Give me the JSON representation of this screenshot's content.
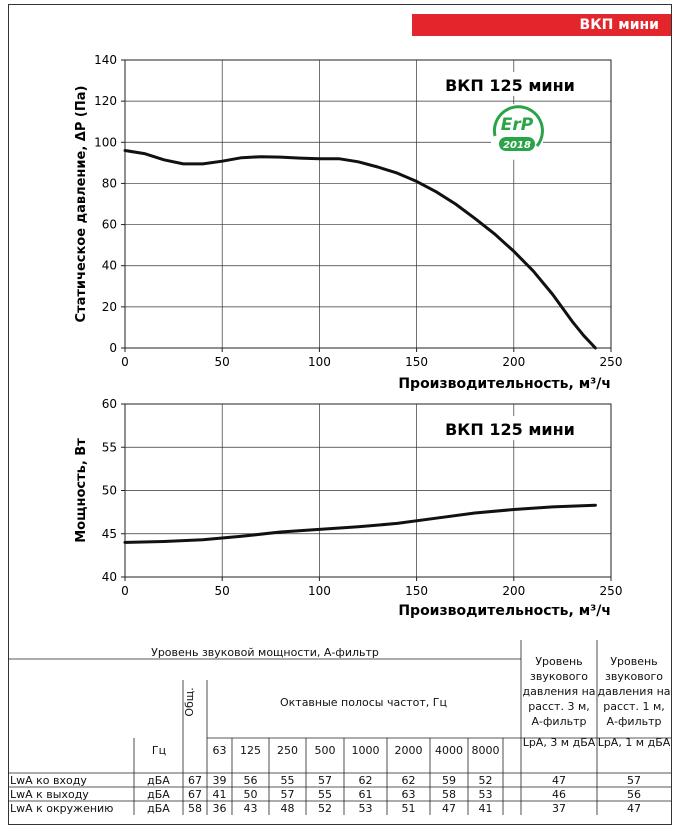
{
  "header": {
    "badge": "ВКП мини"
  },
  "colors": {
    "badge": "#e3262c",
    "curve": "#111111",
    "erp_green": "#2aa449"
  },
  "chart_data": [
    {
      "type": "line",
      "title": "ВКП 125 мини",
      "xlabel": "Производительность, м³/ч",
      "ylabel": "Статическое давление, ΔР (Па)",
      "xlim": [
        0,
        250
      ],
      "ylim": [
        0,
        140
      ],
      "xticks": [
        0,
        50,
        100,
        150,
        200,
        250
      ],
      "yticks": [
        0,
        20,
        40,
        60,
        80,
        100,
        120,
        140
      ],
      "grid": true,
      "series": [
        {
          "x": [
            0,
            10,
            20,
            30,
            40,
            50,
            60,
            70,
            80,
            90,
            100,
            110,
            120,
            130,
            140,
            150,
            160,
            170,
            180,
            190,
            200,
            210,
            220,
            230,
            236,
            242
          ],
          "y": [
            96,
            94.5,
            91.5,
            89.5,
            89.5,
            90.8,
            92.5,
            93,
            92.8,
            92.3,
            92,
            92,
            90.5,
            88,
            85,
            81,
            76,
            70,
            63,
            55.5,
            47,
            37.5,
            26,
            13,
            6,
            0
          ]
        }
      ],
      "badge": {
        "erp_text": "ErP",
        "erp_year": "2018"
      }
    },
    {
      "type": "line",
      "title": "ВКП 125 мини",
      "xlabel": "Производительность, м³/ч",
      "ylabel": "Мощность, Вт",
      "xlim": [
        0,
        250
      ],
      "ylim": [
        40,
        60
      ],
      "xticks": [
        0,
        50,
        100,
        150,
        200,
        250
      ],
      "yticks": [
        40,
        45,
        50,
        55,
        60
      ],
      "grid": true,
      "series": [
        {
          "x": [
            0,
            20,
            40,
            60,
            80,
            100,
            120,
            140,
            160,
            180,
            200,
            220,
            242
          ],
          "y": [
            44,
            44.1,
            44.3,
            44.7,
            45.2,
            45.5,
            45.8,
            46.2,
            46.8,
            47.4,
            47.8,
            48.1,
            48.3
          ]
        }
      ]
    }
  ],
  "sound_table": {
    "header_main": "Уровень звуковой мощности, А-фильтр",
    "header_total": "Общ.",
    "header_octave": "Октавные полосы частот, Гц",
    "header_lp3": "Уровень звукового давления на расст. 3 м, А-фильтр",
    "header_lp1": "Уровень звукового давления на расст. 1 м, А-фильтр",
    "unit_hz": "Гц",
    "bands": [
      "63",
      "125",
      "250",
      "500",
      "1000",
      "2000",
      "4000",
      "8000"
    ],
    "lp3_unit": "LpA, 3 м дБА",
    "lp1_unit": "LpA, 1 м дБА",
    "rows": [
      {
        "label": "LwA ко входу",
        "unit": "дБА",
        "total": "67",
        "bands": [
          "39",
          "56",
          "55",
          "57",
          "62",
          "62",
          "59",
          "52"
        ],
        "lp3": "47",
        "lp1": "57"
      },
      {
        "label": "LwA к выходу",
        "unit": "дБА",
        "total": "67",
        "bands": [
          "41",
          "50",
          "57",
          "55",
          "61",
          "63",
          "58",
          "53"
        ],
        "lp3": "46",
        "lp1": "56"
      },
      {
        "label": "LwA к окружению",
        "unit": "дБА",
        "total": "58",
        "bands": [
          "36",
          "43",
          "48",
          "52",
          "53",
          "51",
          "47",
          "41"
        ],
        "lp3": "37",
        "lp1": "47"
      }
    ]
  }
}
